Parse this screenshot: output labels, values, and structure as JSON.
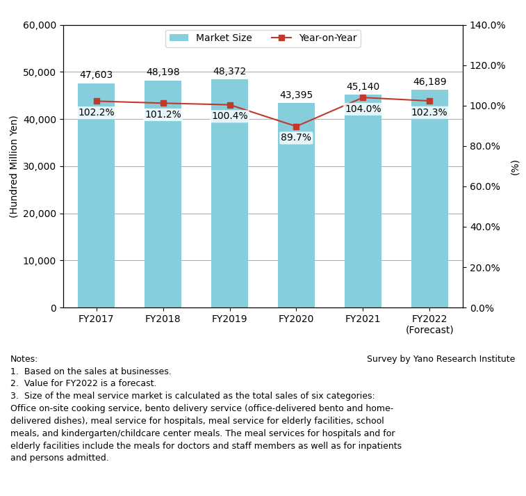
{
  "chart_data": {
    "type": "bar",
    "categories": [
      "FY2017",
      "FY2018",
      "FY2019",
      "FY2020",
      "FY2021",
      "FY2022\n(Forecast)"
    ],
    "series": [
      {
        "name": "Market Size",
        "type": "bar",
        "color": "#87CEDC",
        "values": [
          47603,
          48198,
          48372,
          43395,
          45140,
          46189
        ],
        "value_labels": [
          "47,603",
          "48,198",
          "48,372",
          "43,395",
          "45,140",
          "46,189"
        ]
      },
      {
        "name": "Year-on-Year",
        "type": "line",
        "color": "#C0392B",
        "marker": "square",
        "axis": "y2",
        "values": [
          102.2,
          101.2,
          100.4,
          89.7,
          104.0,
          102.3
        ],
        "value_labels": [
          "102.2%",
          "101.2%",
          "100.4%",
          "89.7%",
          "104.0%",
          "102.3%"
        ]
      }
    ],
    "ylabel": "(Hundred Million Yen)",
    "y2label": "(%)",
    "ylim": [
      0,
      60000
    ],
    "yticks": [
      0,
      {
        "value": 10000,
        "label": "10,000"
      },
      {
        "value": 20000,
        "label": "20,000"
      },
      {
        "value": 30000,
        "label": "30,000"
      },
      {
        "value": 40000,
        "label": "40,000"
      },
      {
        "value": 50000,
        "label": "50,000"
      },
      {
        "value": 60000,
        "label": "60,000"
      }
    ],
    "y2lim": [
      0,
      140.0
    ],
    "y2ticks": [
      {
        "value": 0.0,
        "label": "0.0%"
      },
      {
        "value": 20.0,
        "label": "20.0%"
      },
      {
        "value": 40.0,
        "label": "40.0%"
      },
      {
        "value": 60.0,
        "label": "60.0%"
      },
      {
        "value": 80.0,
        "label": "80.0%"
      },
      {
        "value": 100.0,
        "label": "100.0%"
      },
      {
        "value": 120.0,
        "label": "120.0%"
      },
      {
        "value": 140.0,
        "label": "140.0%"
      }
    ],
    "grid": true,
    "legend": "upper center",
    "data_labels": true,
    "notes_title": "Notes:",
    "notes": [
      "1.  Based on the sales at businesses.",
      "2.  Value for FY2022 is a forecast.",
      "3.  Size of the meal service market is calculated as the total sales of six categories:",
      "Office on-site cooking service, bento delivery service (office-delivered bento and home-",
      "delivered dishes), meal service for hospitals, meal service for elderly facilities, school",
      "meals, and kindergarten/childcare center meals. The meal services for hospitals and for",
      "elderly facilities include the meals for doctors and staff members as well as for inpatients",
      "and persons admitted."
    ],
    "source": "Survey by Yano Research Institute"
  }
}
